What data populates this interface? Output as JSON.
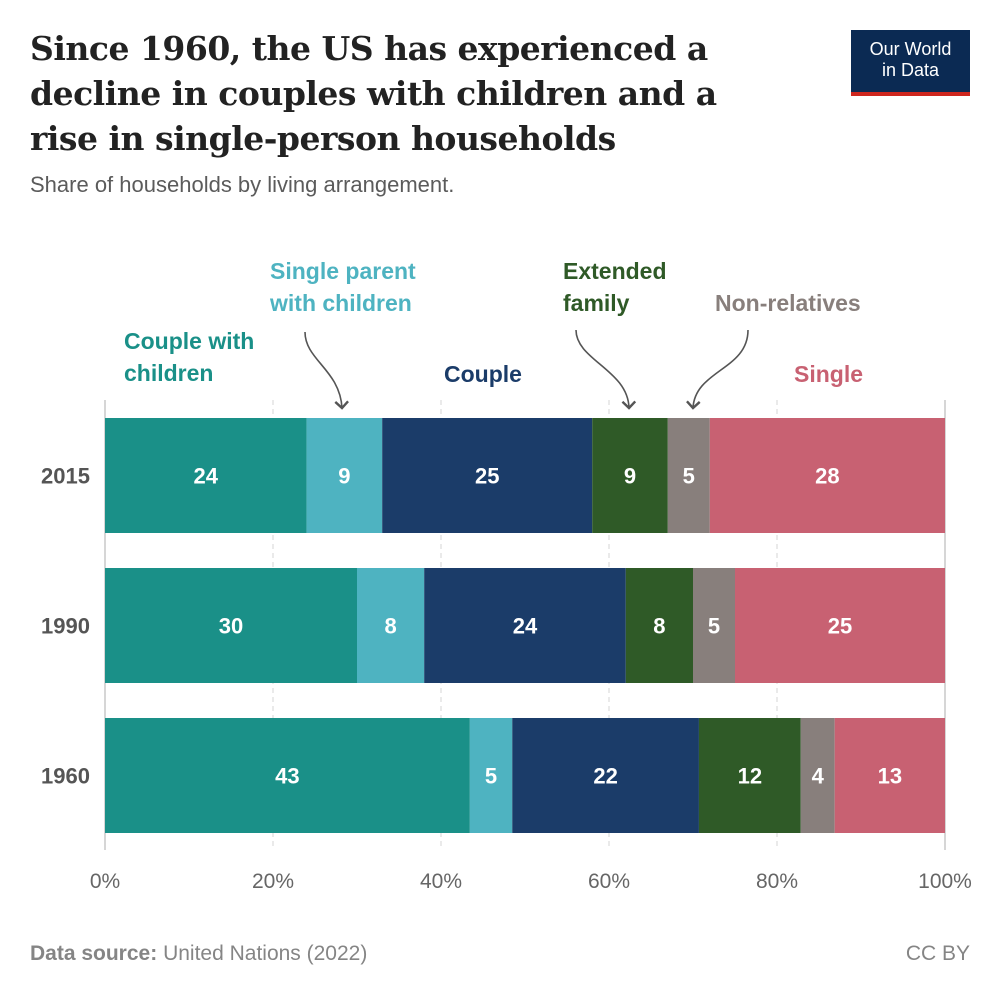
{
  "header": {
    "title": "Since 1960, the US has experienced a decline in couples with children and a rise in single-person households",
    "subtitle": "Share of households by living arrangement.",
    "logo": "Our World in Data"
  },
  "chart_data": {
    "type": "bar",
    "orientation": "horizontal",
    "stacked": true,
    "categories": [
      "2015",
      "1990",
      "1960"
    ],
    "series": [
      {
        "name": "Couple with children",
        "color": "#1a9088",
        "values": [
          24,
          30,
          43
        ]
      },
      {
        "name": "Single parent with children",
        "color": "#4eb3c1",
        "values": [
          9,
          8,
          5
        ]
      },
      {
        "name": "Couple",
        "color": "#1b3c69",
        "values": [
          25,
          24,
          22
        ]
      },
      {
        "name": "Extended family",
        "color": "#2f5a27",
        "values": [
          9,
          8,
          12
        ]
      },
      {
        "name": "Non-relatives",
        "color": "#887f7c",
        "values": [
          5,
          5,
          4
        ]
      },
      {
        "name": "Single",
        "color": "#c86172",
        "values": [
          28,
          25,
          13
        ]
      }
    ],
    "xlim": [
      0,
      100
    ],
    "x_ticks": [
      "0%",
      "20%",
      "40%",
      "60%",
      "80%",
      "100%"
    ],
    "grid": true,
    "legend": "top, inline labels"
  },
  "footer": {
    "source_label": "Data source:",
    "source": "United Nations (2022)",
    "license": "CC BY"
  }
}
